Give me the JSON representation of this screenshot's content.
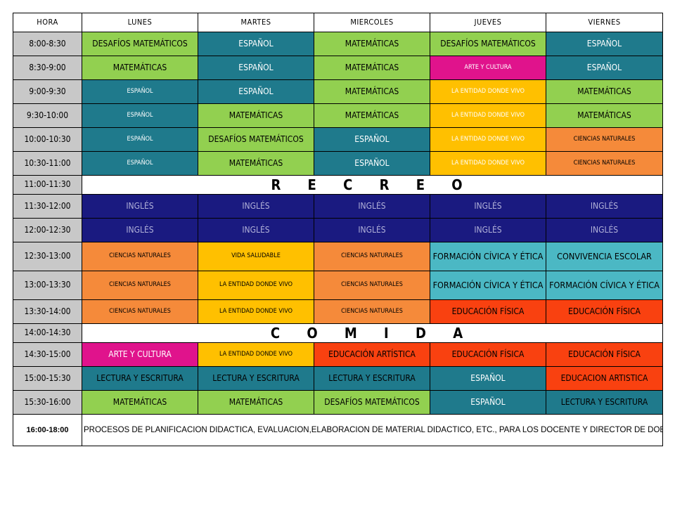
{
  "headers": [
    "HORA",
    "LUNES",
    "MARTES",
    "MIERCOLES",
    "JUEVES",
    "VIERNES"
  ],
  "rows": [
    {
      "time": "8:00-8:30",
      "cells": [
        {
          "t": "DESAFÍOS MATEMÁTICOS",
          "c": "dm"
        },
        {
          "t": "ESPAÑOL",
          "c": "es"
        },
        {
          "t": "MATEMÁTICAS",
          "c": "ma"
        },
        {
          "t": "DESAFÍOS MATEMÁTICOS",
          "c": "dm"
        },
        {
          "t": "ESPAÑOL",
          "c": "es"
        }
      ]
    },
    {
      "time": "8:30-9:00",
      "cells": [
        {
          "t": "MATEMÁTICAS",
          "c": "ma"
        },
        {
          "t": "ESPAÑOL",
          "c": "es"
        },
        {
          "t": "MATEMÁTICAS",
          "c": "ma"
        },
        {
          "t": "ARTE Y CULTURA",
          "c": "ac",
          "sm": true
        },
        {
          "t": "ESPAÑOL",
          "c": "es"
        }
      ]
    },
    {
      "time": "9:00-9:30",
      "cells": [
        {
          "t": "ESPAÑOL",
          "c": "es",
          "sm": true
        },
        {
          "t": "ESPAÑOL",
          "c": "es"
        },
        {
          "t": "MATEMÁTICAS",
          "c": "ma"
        },
        {
          "t": "LA ENTIDAD DONDE VIVO",
          "c": "ed",
          "sm": true
        },
        {
          "t": "MATEMÁTICAS",
          "c": "ma"
        }
      ]
    },
    {
      "time": "9:30-10:00",
      "cells": [
        {
          "t": "ESPAÑOL",
          "c": "es",
          "sm": true
        },
        {
          "t": "MATEMÁTICAS",
          "c": "ma"
        },
        {
          "t": "MATEMÁTICAS",
          "c": "ma"
        },
        {
          "t": "LA ENTIDAD DONDE VIVO",
          "c": "ed",
          "sm": true
        },
        {
          "t": "MATEMÁTICAS",
          "c": "ma"
        }
      ]
    },
    {
      "time": "10:00-10:30",
      "cells": [
        {
          "t": "ESPAÑOL",
          "c": "es",
          "sm": true
        },
        {
          "t": "DESAFÍOS MATEMÁTICOS",
          "c": "dm"
        },
        {
          "t": "ESPAÑOL",
          "c": "es"
        },
        {
          "t": "LA ENTIDAD DONDE VIVO",
          "c": "ed",
          "sm": true
        },
        {
          "t": "CIENCIAS NATURALES",
          "c": "cn",
          "sm": true
        }
      ]
    },
    {
      "time": "10:30-11:00",
      "cells": [
        {
          "t": "ESPAÑOL",
          "c": "es",
          "sm": true
        },
        {
          "t": "MATEMÁTICAS",
          "c": "ma"
        },
        {
          "t": "ESPAÑOL",
          "c": "es"
        },
        {
          "t": "LA ENTIDAD DONDE VIVO",
          "c": "ed",
          "sm": true
        },
        {
          "t": "CIENCIAS NATURALES",
          "c": "cn",
          "sm": true
        }
      ]
    },
    {
      "time": "11:00-11:30",
      "break": "R E C R E O"
    },
    {
      "time": "11:30-12:00",
      "cells": [
        {
          "t": "INGLÉS",
          "c": "in"
        },
        {
          "t": "INGLÉS",
          "c": "in"
        },
        {
          "t": "INGLÉS",
          "c": "in"
        },
        {
          "t": "INGLÉS",
          "c": "in"
        },
        {
          "t": "INGLÉS",
          "c": "in"
        }
      ]
    },
    {
      "time": "12:00-12:30",
      "cells": [
        {
          "t": "INGLÉS",
          "c": "in"
        },
        {
          "t": "INGLÉS",
          "c": "in"
        },
        {
          "t": "INGLÉS",
          "c": "in"
        },
        {
          "t": "INGLÉS",
          "c": "in"
        },
        {
          "t": "INGLÉS",
          "c": "in"
        }
      ]
    },
    {
      "time": "12:30-13:00",
      "big": true,
      "cells": [
        {
          "t": "CIENCIAS NATURALES",
          "c": "cn",
          "sm": true
        },
        {
          "t": "VIDA SALUDABLE",
          "c": "vs",
          "sm": true
        },
        {
          "t": "CIENCIAS NATURALES",
          "c": "cn",
          "sm": true
        },
        {
          "t": "FORMACIÓN CÍVICA Y ÉTICA",
          "c": "fc",
          "lg": true
        },
        {
          "t": "CONVIVENCIA ESCOLAR",
          "c": "fc",
          "lg": true
        }
      ]
    },
    {
      "time": "13:00-13:30",
      "big": true,
      "cells": [
        {
          "t": "CIENCIAS NATURALES",
          "c": "cn",
          "sm": true
        },
        {
          "t": "LA ENTIDAD DONDE VIVO",
          "c": "vs",
          "sm": true
        },
        {
          "t": "CIENCIAS NATURALES",
          "c": "cn",
          "sm": true
        },
        {
          "t": "FORMACIÓN CÍVICA Y ÉTICA",
          "c": "fc",
          "lg": true
        },
        {
          "t": "FORMACIÓN CÍVICA Y ÉTICA",
          "c": "fc",
          "lg": true
        }
      ]
    },
    {
      "time": "13:30-14:00",
      "cells": [
        {
          "t": "CIENCIAS NATURALES",
          "c": "cn",
          "sm": true
        },
        {
          "t": "LA ENTIDAD DONDE VIVO",
          "c": "vs",
          "sm": true
        },
        {
          "t": "CIENCIAS NATURALES",
          "c": "cn",
          "sm": true
        },
        {
          "t": "EDUCACIÓN FÍSICA",
          "c": "ef"
        },
        {
          "t": "EDUCACIÓN FÍSICA",
          "c": "ef"
        }
      ]
    },
    {
      "time": "14:00-14:30",
      "break": "C O M I D A"
    },
    {
      "time": "14:30-15:00",
      "cells": [
        {
          "t": "ARTE Y CULTURA",
          "c": "ac"
        },
        {
          "t": "LA ENTIDAD DONDE VIVO",
          "c": "vs",
          "sm": true
        },
        {
          "t": "EDUCACIÓN ARTÍSTICA",
          "c": "ea"
        },
        {
          "t": "EDUCACIÓN FÍSICA",
          "c": "ef"
        },
        {
          "t": "EDUCACIÓN FÍSICA",
          "c": "ef"
        }
      ]
    },
    {
      "time": "15:00-15:30",
      "cells": [
        {
          "t": "LECTURA Y ESCRITURA",
          "c": "lx"
        },
        {
          "t": "LECTURA Y ESCRITURA",
          "c": "lx"
        },
        {
          "t": "LECTURA Y ESCRITURA",
          "c": "lx"
        },
        {
          "t": "ESPAÑOL",
          "c": "es"
        },
        {
          "t": "EDUCACION ARTISTICA",
          "c": "ea"
        }
      ]
    },
    {
      "time": "15:30-16:00",
      "cells": [
        {
          "t": "MATEMÁTICAS",
          "c": "ma"
        },
        {
          "t": "MATEMÁTICAS",
          "c": "ma"
        },
        {
          "t": "DESAFÍOS MATEMÁTICOS",
          "c": "dm"
        },
        {
          "t": "ESPAÑOL",
          "c": "es"
        },
        {
          "t": "LECTURA Y ESCRITURA",
          "c": "lx"
        }
      ]
    }
  ],
  "footer": {
    "time": "16:00-18:00",
    "note": "PROCESOS DE PLANIFICACION DIDACTICA, EVALUACION,ELABORACION DE MATERIAL DIDACTICO, ETC., PARA LOS DOCENTE Y DIRECTOR DE DOBLE PLAZA."
  },
  "colors": {
    "dm": "#92d050",
    "es": "#1f7a8c",
    "ma": "#92d050",
    "ac": "#e0138c",
    "ed": "#ffc000",
    "cn": "#f58a3a",
    "in": "#1a1a80",
    "vs": "#ffc000",
    "fc": "#4bb8c4",
    "ef": "#f94110",
    "lx": "#1f7a8c"
  }
}
